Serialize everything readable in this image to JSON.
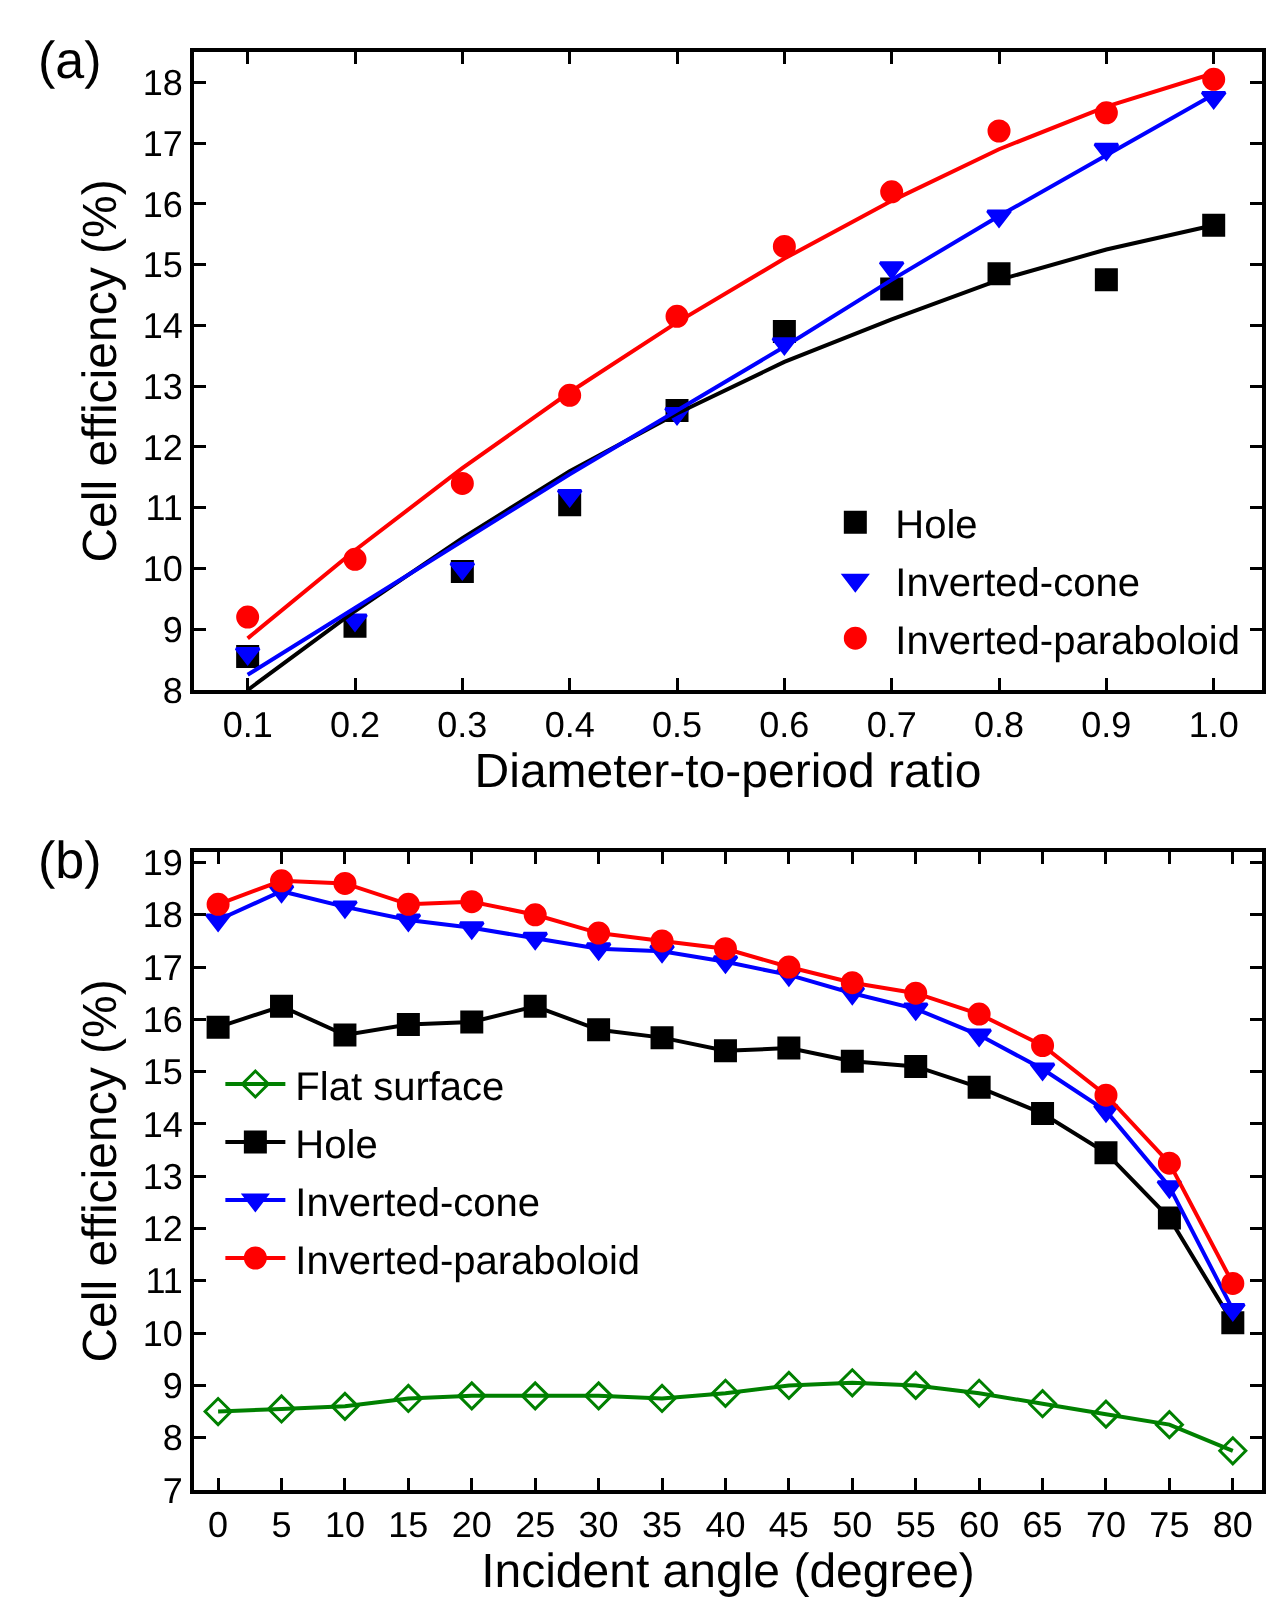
{
  "chart_data": [
    {
      "type": "scatter",
      "title": "(a)",
      "xlabel": "Diameter-to-period ratio",
      "ylabel": "Cell efficiency (%)",
      "x": [
        0.1,
        0.2,
        0.3,
        0.4,
        0.5,
        0.6,
        0.7,
        0.8,
        0.9,
        1.0
      ],
      "series": [
        {
          "name": "Hole",
          "color": "#000000",
          "marker": "square",
          "values": [
            8.55,
            9.05,
            9.95,
            11.05,
            12.6,
            13.9,
            14.6,
            14.85,
            14.75,
            15.65
          ]
        },
        {
          "name": "Inverted-cone",
          "color": "#0000ff",
          "marker": "triangle-down",
          "values": [
            8.6,
            9.15,
            10.0,
            11.2,
            12.55,
            13.7,
            14.95,
            15.8,
            16.9,
            17.75
          ]
        },
        {
          "name": "Inverted-paraboloid",
          "color": "#ff0000",
          "marker": "circle",
          "values": [
            9.2,
            10.15,
            11.4,
            12.85,
            14.15,
            15.3,
            16.2,
            17.2,
            17.5,
            18.05
          ]
        },
        {
          "type": "line",
          "color": "#000000",
          "marker": "none",
          "x": [
            0.1,
            0.2,
            0.3,
            0.4,
            0.5,
            0.6,
            0.7,
            0.8,
            0.9,
            1.0
          ],
          "values": [
            8.0,
            9.3,
            10.5,
            11.6,
            12.55,
            13.4,
            14.1,
            14.75,
            15.25,
            15.65
          ]
        },
        {
          "type": "line",
          "color": "#0000ff",
          "marker": "none",
          "x": [
            0.1,
            0.2,
            0.3,
            0.4,
            0.5,
            0.6,
            0.7,
            0.8,
            0.9,
            1.0
          ],
          "values": [
            8.25,
            9.35,
            10.45,
            11.55,
            12.6,
            13.65,
            14.75,
            15.8,
            16.8,
            17.8
          ]
        },
        {
          "type": "line",
          "color": "#ff0000",
          "marker": "none",
          "x": [
            0.1,
            0.2,
            0.3,
            0.4,
            0.5,
            0.6,
            0.7,
            0.8,
            0.9,
            1.0
          ],
          "values": [
            8.85,
            10.3,
            11.65,
            12.9,
            14.05,
            15.1,
            16.05,
            16.9,
            17.6,
            18.15
          ]
        }
      ],
      "xlim": [
        0.05,
        1.045
      ],
      "xticks": [
        {
          "value": 0.1,
          "label": "0.1"
        },
        {
          "value": 0.2,
          "label": "0.2"
        },
        {
          "value": 0.3,
          "label": "0.3"
        },
        {
          "value": 0.4,
          "label": "0.4"
        },
        {
          "value": 0.5,
          "label": "0.5"
        },
        {
          "value": 0.6,
          "label": "0.6"
        },
        {
          "value": 0.7,
          "label": "0.7"
        },
        {
          "value": 0.8,
          "label": "0.8"
        },
        {
          "value": 0.9,
          "label": "0.9"
        },
        {
          "value": 1.0,
          "label": "1.0"
        }
      ],
      "ylim": [
        8,
        18.5
      ],
      "yticks": [
        8,
        9,
        10,
        11,
        12,
        13,
        14,
        15,
        16,
        17,
        18
      ],
      "grid": false,
      "legend": "bottom right"
    },
    {
      "type": "line",
      "title": "(b)",
      "xlabel": "Incident angle (degree)",
      "ylabel": "Cell efficiency (%)",
      "x": [
        0,
        5,
        10,
        15,
        20,
        25,
        30,
        35,
        40,
        45,
        50,
        55,
        60,
        65,
        70,
        75,
        80
      ],
      "series": [
        {
          "name": "Flat surface",
          "color": "#008000",
          "marker": "diamond-open",
          "values": [
            8.5,
            8.55,
            8.6,
            8.75,
            8.8,
            8.8,
            8.8,
            8.75,
            8.85,
            9.0,
            9.05,
            9.0,
            8.85,
            8.65,
            8.45,
            8.25,
            7.75
          ]
        },
        {
          "name": "Hole",
          "color": "#000000",
          "marker": "square",
          "values": [
            15.85,
            16.25,
            15.7,
            15.9,
            15.95,
            16.25,
            15.8,
            15.65,
            15.4,
            15.45,
            15.2,
            15.1,
            14.7,
            14.2,
            13.45,
            12.2,
            10.2
          ]
        },
        {
          "name": "Inverted-cone",
          "color": "#0000ff",
          "marker": "triangle-down",
          "values": [
            17.9,
            18.45,
            18.15,
            17.9,
            17.75,
            17.55,
            17.35,
            17.3,
            17.1,
            16.85,
            16.5,
            16.2,
            15.7,
            15.05,
            14.25,
            12.8,
            10.45
          ]
        },
        {
          "name": "Inverted-paraboloid",
          "color": "#ff0000",
          "marker": "circle",
          "values": [
            18.2,
            18.65,
            18.6,
            18.2,
            18.25,
            18.0,
            17.65,
            17.5,
            17.35,
            17.0,
            16.7,
            16.5,
            16.1,
            15.5,
            14.55,
            13.25,
            10.95
          ]
        }
      ],
      "xlim": [
        -1.9,
        82.3
      ],
      "xticks": [
        0,
        5,
        10,
        15,
        20,
        25,
        30,
        35,
        40,
        45,
        50,
        55,
        60,
        65,
        70,
        75,
        80
      ],
      "ylim": [
        7,
        19.2
      ],
      "yticks": [
        7,
        8,
        9,
        10,
        11,
        12,
        13,
        14,
        15,
        16,
        17,
        18,
        19
      ],
      "grid": false,
      "legend": "left",
      "line_style": "solid"
    }
  ]
}
